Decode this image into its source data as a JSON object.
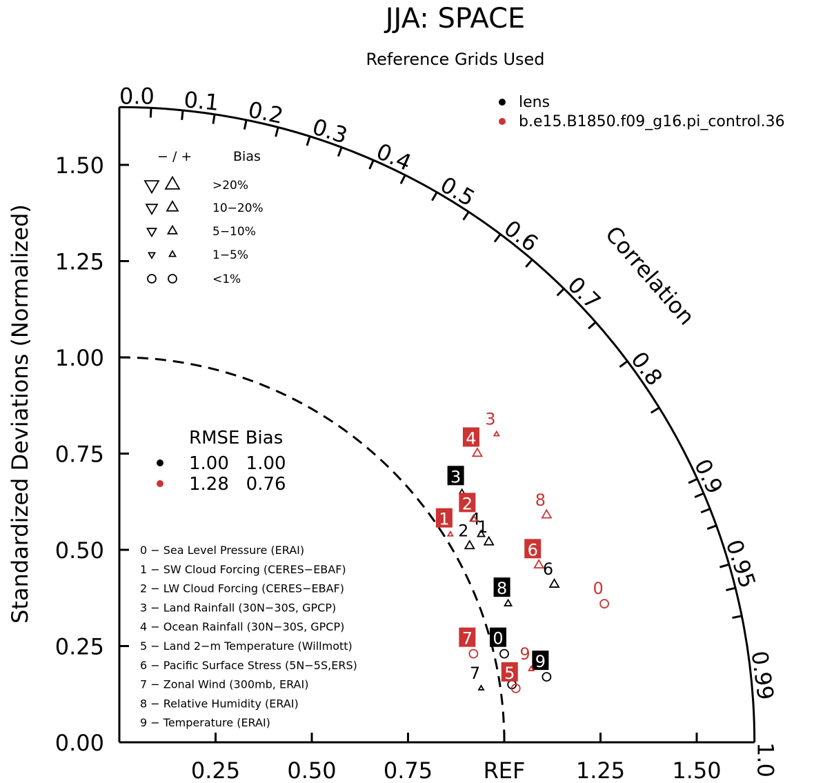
{
  "chart_data": {
    "type": "scatter",
    "subtype": "taylor-diagram",
    "title": "JJA: SPACE",
    "subtitle": "Reference Grids Used",
    "ylabel": "Standardized Deviations (Normalized)",
    "corr_label": "Correlation",
    "std_range": [
      0,
      1.65
    ],
    "y_ticks": [
      "0.00",
      "0.25",
      "0.50",
      "0.75",
      "1.00",
      "1.25",
      "1.50"
    ],
    "x_ticks": [
      "0.25",
      "0.50",
      "0.75",
      "REF",
      "1.25",
      "1.50"
    ],
    "corr_ticks": [
      "0.0",
      "0.1",
      "0.2",
      "0.3",
      "0.4",
      "0.5",
      "0.6",
      "0.7",
      "0.8",
      "0.9",
      "0.95",
      "0.99",
      "1.0"
    ],
    "legend": {
      "series": [
        {
          "name": "lens",
          "color": "#000000"
        },
        {
          "name": "b.e15.B1850.f09_g16.pi_control.36",
          "color": "#cc3333"
        }
      ],
      "bias_header": "− / +",
      "bias_title": "Bias",
      "bias_levels": [
        ">20%",
        "10−20%",
        "5−10%",
        "1−5%",
        "<1%"
      ],
      "rmse_header": "RMSE Bias",
      "rmse_rows": [
        {
          "values": "1.00   1.00",
          "color": "#000000"
        },
        {
          "values": "1.28   0.76",
          "color": "#cc3333"
        }
      ]
    },
    "variables": [
      "0 − Sea Level Pressure (ERAI)",
      "1 − SW Cloud Forcing (CERES−EBAF)",
      "2 − LW Cloud Forcing (CERES−EBAF)",
      "3 − Land Rainfall (30N−30S, GPCP)",
      "4 − Ocean Rainfall (30N−30S, GPCP)",
      "5 − Land 2−m Temperature (Willmott)",
      "6 − Pacific Surface Stress (5N−5S,ERS)",
      "7 − Zonal Wind (300mb, ERAI)",
      "8 − Relative Humidity (ERAI)",
      "9 − Temperature (ERAI)"
    ],
    "series": [
      {
        "name": "lens",
        "color": "#000000",
        "points": [
          {
            "label": "0",
            "x": 1.0,
            "y": 0.23,
            "marker": "circle",
            "boxed": true
          },
          {
            "label": "1",
            "x": 0.96,
            "y": 0.52,
            "marker": "up",
            "size": 3,
            "boxed": false
          },
          {
            "label": "2",
            "x": 0.91,
            "y": 0.51,
            "marker": "up",
            "size": 3,
            "boxed": false
          },
          {
            "label": "3",
            "x": 0.89,
            "y": 0.65,
            "marker": "up",
            "size": 1,
            "boxed": true
          },
          {
            "label": "4",
            "x": 0.94,
            "y": 0.54,
            "marker": "up",
            "size": 2,
            "boxed": false
          },
          {
            "label": "5",
            "x": 1.02,
            "y": 0.15,
            "marker": "circle",
            "boxed": false
          },
          {
            "label": "6",
            "x": 1.13,
            "y": 0.41,
            "marker": "up",
            "size": 3,
            "boxed": false
          },
          {
            "label": "7",
            "x": 0.94,
            "y": 0.14,
            "marker": "up",
            "size": 1,
            "boxed": false
          },
          {
            "label": "8",
            "x": 1.01,
            "y": 0.36,
            "marker": "up",
            "size": 2,
            "boxed": true
          },
          {
            "label": "9",
            "x": 1.11,
            "y": 0.17,
            "marker": "circle",
            "boxed": true
          }
        ]
      },
      {
        "name": "b.e15.B1850.f09_g16.pi_control.36",
        "color": "#cc3333",
        "points": [
          {
            "label": "0",
            "x": 1.26,
            "y": 0.36,
            "marker": "circle",
            "boxed": false
          },
          {
            "label": "1",
            "x": 0.86,
            "y": 0.54,
            "marker": "up",
            "size": 1,
            "boxed": true
          },
          {
            "label": "2",
            "x": 0.92,
            "y": 0.58,
            "marker": "up",
            "size": 2,
            "boxed": true
          },
          {
            "label": "3",
            "x": 0.98,
            "y": 0.8,
            "marker": "up",
            "size": 1,
            "boxed": false
          },
          {
            "label": "4",
            "x": 0.93,
            "y": 0.75,
            "marker": "up",
            "size": 3,
            "boxed": true
          },
          {
            "label": "5",
            "x": 1.03,
            "y": 0.14,
            "marker": "circle",
            "boxed": true
          },
          {
            "label": "6",
            "x": 1.09,
            "y": 0.46,
            "marker": "up",
            "size": 3,
            "boxed": true
          },
          {
            "label": "7",
            "x": 0.92,
            "y": 0.23,
            "marker": "circle",
            "boxed": true
          },
          {
            "label": "8",
            "x": 1.11,
            "y": 0.59,
            "marker": "up",
            "size": 3,
            "boxed": false
          },
          {
            "label": "9",
            "x": 1.07,
            "y": 0.19,
            "marker": "up",
            "size": 1,
            "boxed": false
          }
        ]
      }
    ]
  }
}
